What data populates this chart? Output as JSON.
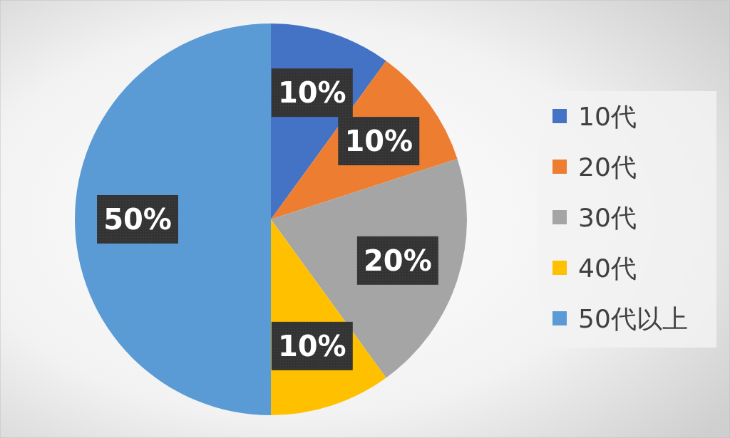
{
  "chart_data": {
    "type": "pie",
    "categories": [
      "10代",
      "20代",
      "30代",
      "40代",
      "50代以上"
    ],
    "values": [
      10,
      10,
      20,
      10,
      50
    ],
    "colors": [
      "#4472c4",
      "#ed7d31",
      "#a5a5a5",
      "#ffc000",
      "#5b9bd5"
    ],
    "value_labels": [
      "10%",
      "10%",
      "20%",
      "10%",
      "50%"
    ],
    "legend": "right"
  }
}
